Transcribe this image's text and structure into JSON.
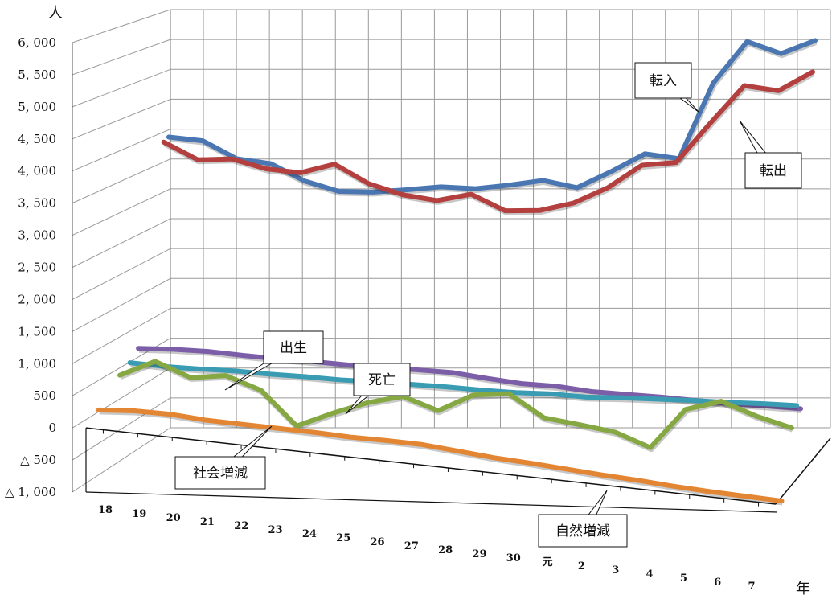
{
  "chart_data": {
    "type": "line",
    "y_unit": "人",
    "x_unit": "年",
    "ylim": [
      -1000,
      6000
    ],
    "y_ticks": [
      "6, 000",
      "5, 500",
      "5, 000",
      "4, 500",
      "4, 000",
      "3, 500",
      "3, 000",
      "2, 500",
      "2, 000",
      "1, 500",
      "1, 000",
      "500",
      "0",
      "△ 500",
      "△ 1, 000"
    ],
    "categories": [
      "18",
      "19",
      "20",
      "21",
      "22",
      "23",
      "24",
      "25",
      "26",
      "27",
      "28",
      "29",
      "30",
      "元",
      "2",
      "3",
      "4",
      "5",
      "6",
      "7"
    ],
    "grid": true,
    "series": [
      {
        "name": "転入",
        "color": "#4a76b2",
        "values": [
          3880,
          3820,
          3520,
          3440,
          3150,
          2980,
          2970,
          3010,
          3060,
          3030,
          3090,
          3170,
          3050,
          3320,
          3620,
          3540,
          4800,
          5500,
          5300,
          5520
        ]
      },
      {
        "name": "転出",
        "color": "#b3403e",
        "values": [
          3840,
          3550,
          3570,
          3410,
          3350,
          3500,
          3180,
          3000,
          2910,
          3020,
          2750,
          2760,
          2890,
          3150,
          3530,
          3580,
          4240,
          4870,
          4790,
          5110
        ]
      },
      {
        "name": "出生",
        "color": "#7b5ea7",
        "values": [
          690,
          700,
          690,
          650,
          620,
          600,
          570,
          550,
          540,
          520,
          450,
          390,
          370,
          310,
          290,
          270,
          240,
          210,
          200,
          180
        ]
      },
      {
        "name": "死亡",
        "color": "#3a9cb3",
        "values": [
          550,
          520,
          510,
          510,
          490,
          480,
          460,
          460,
          450,
          440,
          420,
          410,
          420,
          400,
          420,
          430,
          440,
          440,
          450,
          450
        ]
      },
      {
        "name": "社会増減",
        "color": "#86a843",
        "values": [
          460,
          720,
          500,
          570,
          370,
          -160,
          80,
          290,
          430,
          240,
          530,
          590,
          240,
          170,
          90,
          -120,
          530,
          700,
          500,
          350
        ]
      },
      {
        "name": "自然増減",
        "color": "#e38634",
        "values": [
          140,
          180,
          180,
          140,
          130,
          120,
          110,
          90,
          90,
          80,
          30,
          -20,
          -50,
          -90,
          -130,
          -160,
          -200,
          -230,
          -250,
          -270
        ]
      }
    ],
    "callouts": [
      {
        "text": "転入",
        "series": 0
      },
      {
        "text": "転出",
        "series": 1
      },
      {
        "text": "出生",
        "series": 2
      },
      {
        "text": "死亡",
        "series": 3
      },
      {
        "text": "社会増減",
        "series": 4
      },
      {
        "text": "自然増減",
        "series": 5
      }
    ]
  }
}
